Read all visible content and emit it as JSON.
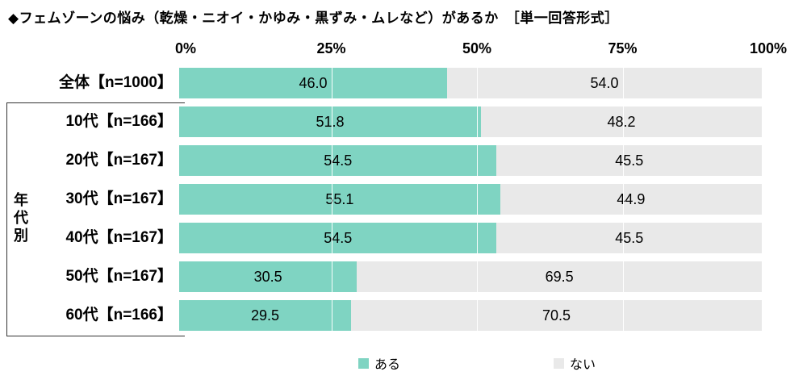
{
  "title": "◆フェムゾーンの悩み（乾燥・ニオイ・かゆみ・黒ずみ・ムレなど）があるか　［単一回答形式］",
  "group_label": "年代別",
  "colors": {
    "aru": "#7FD4C2",
    "nai": "#E9E9E9"
  },
  "chart_data": {
    "type": "bar",
    "orientation": "horizontal",
    "stacked": true,
    "title": "◆フェムゾーンの悩み（乾燥・ニオイ・かゆみ・黒ずみ・ムレなど）があるか　［単一回答形式］",
    "categories": [
      "全体【n=1000】",
      "10代【n=166】",
      "20代【n=167】",
      "30代【n=167】",
      "40代【n=167】",
      "50代【n=167】",
      "60代【n=166】"
    ],
    "series": [
      {
        "name": "ある",
        "color": "#7FD4C2",
        "values": [
          46.0,
          51.8,
          54.5,
          55.1,
          54.5,
          30.5,
          29.5
        ]
      },
      {
        "name": "ない",
        "color": "#E9E9E9",
        "values": [
          54.0,
          48.2,
          45.5,
          44.9,
          45.5,
          69.5,
          70.5
        ]
      }
    ],
    "x_ticks": [
      "0%",
      "25%",
      "50%",
      "75%",
      "100%"
    ],
    "xlim": [
      0,
      100
    ],
    "value_format": "one_decimal",
    "grid": "vertical-at-25-50-75",
    "legend_position": "bottom",
    "group_bracket_rows": [
      1,
      2,
      3,
      4,
      5,
      6
    ],
    "group_bracket_label": "年代別"
  }
}
